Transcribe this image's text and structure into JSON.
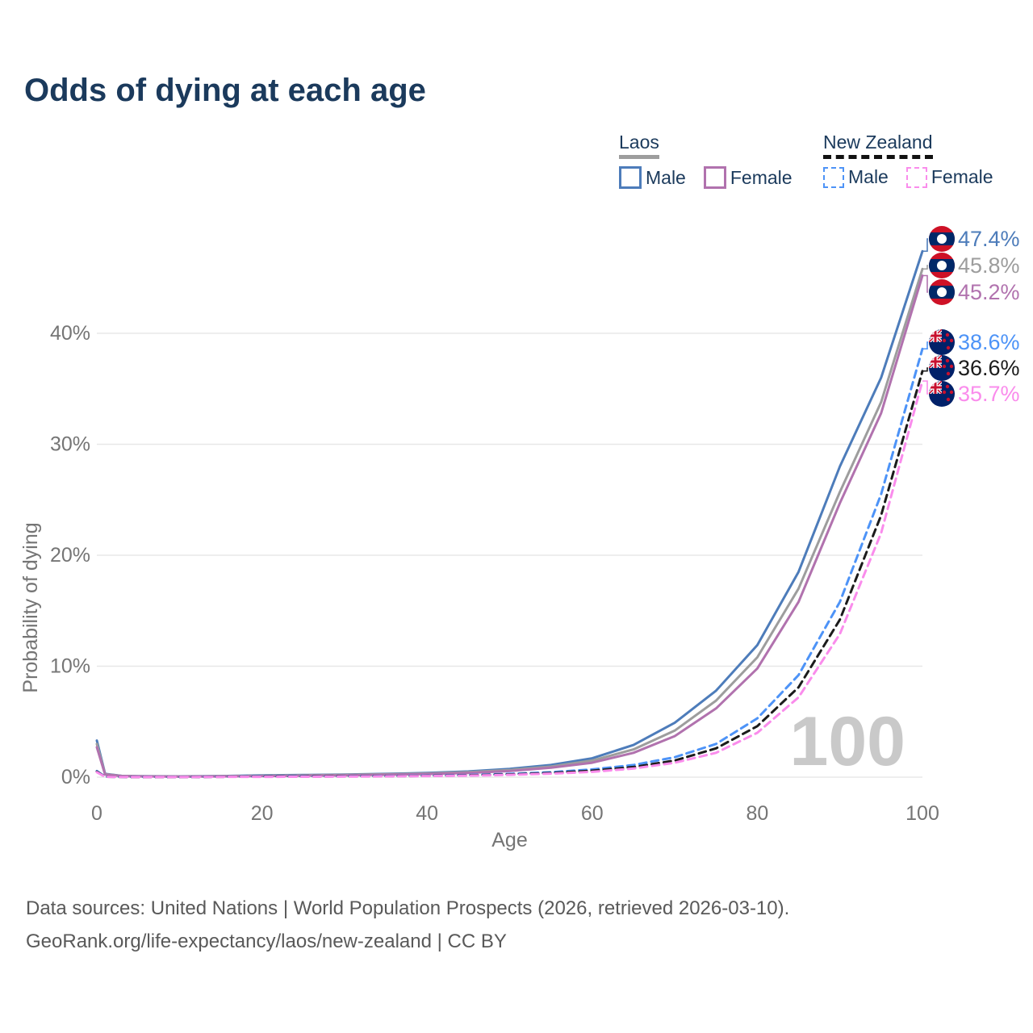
{
  "title": "Odds of dying at each age",
  "legend": {
    "groups": [
      {
        "name": "Laos",
        "line_style": "solid",
        "underline_color": "#9d9d9d",
        "items": [
          {
            "label": "Male",
            "color": "#4d7cba"
          },
          {
            "label": "Female",
            "color": "#b172ae"
          }
        ]
      },
      {
        "name": "New Zealand",
        "line_style": "dashed",
        "underline_color": "#111111",
        "items": [
          {
            "label": "Male",
            "color": "#4d93f7"
          },
          {
            "label": "Female",
            "color": "#fa8cec"
          }
        ]
      }
    ]
  },
  "chart_data": {
    "type": "line",
    "title": "Odds of dying at each age",
    "xlabel": "Age",
    "ylabel": "Probability of dying",
    "xlim": [
      0,
      100
    ],
    "ylim": [
      0,
      47.5
    ],
    "grid": true,
    "legend_position": "top-right",
    "watermark": "100",
    "xticks": [
      {
        "value": 0,
        "label": "0"
      },
      {
        "value": 20,
        "label": "20"
      },
      {
        "value": 40,
        "label": "40"
      },
      {
        "value": 60,
        "label": "60"
      },
      {
        "value": 80,
        "label": "80"
      },
      {
        "value": 100,
        "label": "100"
      }
    ],
    "yticks": [
      {
        "value": 0,
        "label": "0%"
      },
      {
        "value": 10,
        "label": "10%"
      },
      {
        "value": 20,
        "label": "20%"
      },
      {
        "value": 30,
        "label": "30%"
      },
      {
        "value": 40,
        "label": "40%"
      }
    ],
    "series": [
      {
        "name": "Laos Male",
        "country": "Laos",
        "sex": "Male",
        "flag": "laos",
        "line": "solid",
        "color": "#4d7cba",
        "end_label": "47.4%",
        "end_value": 47.4,
        "points": [
          [
            0,
            3.3
          ],
          [
            1,
            0.3
          ],
          [
            3,
            0.12
          ],
          [
            5,
            0.09
          ],
          [
            10,
            0.07
          ],
          [
            15,
            0.1
          ],
          [
            20,
            0.16
          ],
          [
            25,
            0.2
          ],
          [
            30,
            0.24
          ],
          [
            35,
            0.3
          ],
          [
            40,
            0.38
          ],
          [
            45,
            0.52
          ],
          [
            50,
            0.75
          ],
          [
            55,
            1.1
          ],
          [
            60,
            1.7
          ],
          [
            65,
            2.9
          ],
          [
            70,
            4.9
          ],
          [
            75,
            7.8
          ],
          [
            80,
            11.9
          ],
          [
            85,
            18.5
          ],
          [
            90,
            28.0
          ],
          [
            95,
            36.0
          ],
          [
            100,
            47.4
          ]
        ]
      },
      {
        "name": "Laos (both sexes)",
        "country": "Laos",
        "sex": "Both",
        "flag": "laos",
        "line": "solid",
        "color": "#9d9d9d",
        "end_label": "45.8%",
        "end_value": 45.8,
        "points": [
          [
            0,
            3.0
          ],
          [
            1,
            0.27
          ],
          [
            3,
            0.11
          ],
          [
            5,
            0.08
          ],
          [
            10,
            0.06
          ],
          [
            15,
            0.09
          ],
          [
            20,
            0.13
          ],
          [
            25,
            0.17
          ],
          [
            30,
            0.21
          ],
          [
            35,
            0.26
          ],
          [
            40,
            0.33
          ],
          [
            45,
            0.45
          ],
          [
            50,
            0.65
          ],
          [
            55,
            0.95
          ],
          [
            60,
            1.5
          ],
          [
            65,
            2.5
          ],
          [
            70,
            4.2
          ],
          [
            75,
            6.9
          ],
          [
            80,
            10.8
          ],
          [
            85,
            17.0
          ],
          [
            90,
            25.7
          ],
          [
            95,
            33.8
          ],
          [
            100,
            45.8
          ]
        ]
      },
      {
        "name": "Laos Female",
        "country": "Laos",
        "sex": "Female",
        "flag": "laos",
        "line": "solid",
        "color": "#b172ae",
        "end_label": "45.2%",
        "end_value": 45.2,
        "points": [
          [
            0,
            2.7
          ],
          [
            1,
            0.24
          ],
          [
            3,
            0.1
          ],
          [
            5,
            0.07
          ],
          [
            10,
            0.05
          ],
          [
            15,
            0.07
          ],
          [
            20,
            0.1
          ],
          [
            25,
            0.13
          ],
          [
            30,
            0.17
          ],
          [
            35,
            0.22
          ],
          [
            40,
            0.28
          ],
          [
            45,
            0.38
          ],
          [
            50,
            0.55
          ],
          [
            55,
            0.85
          ],
          [
            60,
            1.3
          ],
          [
            65,
            2.2
          ],
          [
            70,
            3.7
          ],
          [
            75,
            6.2
          ],
          [
            80,
            9.8
          ],
          [
            85,
            15.8
          ],
          [
            90,
            24.7
          ],
          [
            95,
            32.8
          ],
          [
            100,
            45.2
          ]
        ]
      },
      {
        "name": "New Zealand Male",
        "country": "New Zealand",
        "sex": "Male",
        "flag": "new-zealand",
        "line": "dashed",
        "color": "#4d93f7",
        "end_label": "38.6%",
        "end_value": 38.6,
        "points": [
          [
            0,
            0.55
          ],
          [
            1,
            0.04
          ],
          [
            5,
            0.01
          ],
          [
            10,
            0.01
          ],
          [
            15,
            0.04
          ],
          [
            20,
            0.07
          ],
          [
            25,
            0.08
          ],
          [
            30,
            0.09
          ],
          [
            35,
            0.11
          ],
          [
            40,
            0.14
          ],
          [
            45,
            0.2
          ],
          [
            50,
            0.3
          ],
          [
            55,
            0.45
          ],
          [
            60,
            0.7
          ],
          [
            65,
            1.1
          ],
          [
            70,
            1.8
          ],
          [
            75,
            3.0
          ],
          [
            80,
            5.3
          ],
          [
            85,
            9.2
          ],
          [
            90,
            15.8
          ],
          [
            95,
            25.5
          ],
          [
            100,
            38.6
          ]
        ]
      },
      {
        "name": "New Zealand (both sexes)",
        "country": "New Zealand",
        "sex": "Both",
        "flag": "new-zealand",
        "line": "dashed",
        "color": "#1b1b1b",
        "end_label": "36.6%",
        "end_value": 36.6,
        "points": [
          [
            0,
            0.5
          ],
          [
            1,
            0.04
          ],
          [
            5,
            0.01
          ],
          [
            10,
            0.01
          ],
          [
            15,
            0.03
          ],
          [
            20,
            0.05
          ],
          [
            25,
            0.06
          ],
          [
            30,
            0.07
          ],
          [
            35,
            0.09
          ],
          [
            40,
            0.12
          ],
          [
            45,
            0.17
          ],
          [
            50,
            0.25
          ],
          [
            55,
            0.38
          ],
          [
            60,
            0.58
          ],
          [
            65,
            0.92
          ],
          [
            70,
            1.5
          ],
          [
            75,
            2.6
          ],
          [
            80,
            4.6
          ],
          [
            85,
            8.1
          ],
          [
            90,
            14.2
          ],
          [
            95,
            23.6
          ],
          [
            100,
            36.6
          ]
        ]
      },
      {
        "name": "New Zealand Female",
        "country": "New Zealand",
        "sex": "Female",
        "flag": "new-zealand",
        "line": "dashed",
        "color": "#fa8cec",
        "end_label": "35.7%",
        "end_value": 35.7,
        "points": [
          [
            0,
            0.45
          ],
          [
            1,
            0.03
          ],
          [
            5,
            0.01
          ],
          [
            10,
            0.01
          ],
          [
            15,
            0.02
          ],
          [
            20,
            0.03
          ],
          [
            25,
            0.04
          ],
          [
            30,
            0.05
          ],
          [
            35,
            0.07
          ],
          [
            40,
            0.1
          ],
          [
            45,
            0.14
          ],
          [
            50,
            0.21
          ],
          [
            55,
            0.32
          ],
          [
            60,
            0.48
          ],
          [
            65,
            0.78
          ],
          [
            70,
            1.3
          ],
          [
            75,
            2.2
          ],
          [
            80,
            4.0
          ],
          [
            85,
            7.2
          ],
          [
            90,
            12.9
          ],
          [
            95,
            22.0
          ],
          [
            100,
            35.7
          ]
        ]
      }
    ]
  },
  "colors": {
    "title": "#1b3a5c",
    "axis_text": "#757575",
    "gridline": "#e8e8e8",
    "watermark": "#c9c9c9",
    "laos_flag_red": "#ce1126",
    "laos_flag_blue": "#002868",
    "nz_flag_blue": "#012169",
    "nz_flag_red": "#c8102e"
  },
  "footer": {
    "line1": "Data sources: United Nations | World Population Prospects (2026, retrieved 2026-03-10).",
    "line2": "GeoRank.org/life-expectancy/laos/new-zealand | CC BY"
  }
}
